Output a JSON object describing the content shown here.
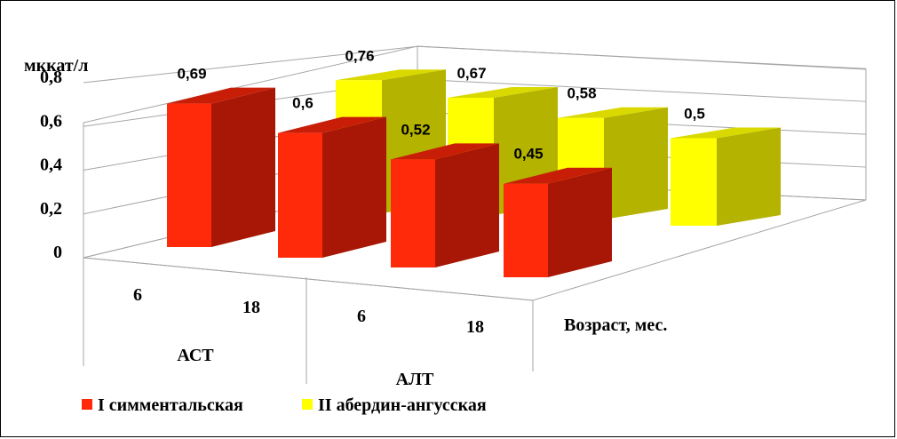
{
  "chart_data": {
    "type": "bar",
    "subtype": "3d-clustered-columns",
    "ylabel": "мккат/л",
    "xlabel": "Возраст, мес.",
    "ylim": [
      0,
      0.8
    ],
    "yticks": [
      "0",
      "0,2",
      "0,4",
      "0,6",
      "0,8"
    ],
    "groups": [
      "АСТ",
      "АЛТ"
    ],
    "categories": [
      "6",
      "18",
      "6",
      "18"
    ],
    "series": [
      {
        "name": "I симментальская",
        "color": "#ff2a0a",
        "values": [
          0.69,
          0.6,
          0.52,
          0.45
        ],
        "labels": [
          "0,69",
          "0,6",
          "0,52",
          "0,45"
        ]
      },
      {
        "name": "II абердин-ангусская",
        "color": "#ffff00",
        "values": [
          0.76,
          0.67,
          0.58,
          0.5
        ],
        "labels": [
          "0,76",
          "0,67",
          "0,58",
          "0,5"
        ]
      }
    ],
    "grid": true,
    "legend": "bottom-left"
  },
  "colors": {
    "red_front": "#ff2a0a",
    "red_side": "#a81606",
    "red_top": "#c81e08",
    "yellow_front": "#ffff00",
    "yellow_side": "#b3b300",
    "yellow_top": "#d9d900"
  }
}
